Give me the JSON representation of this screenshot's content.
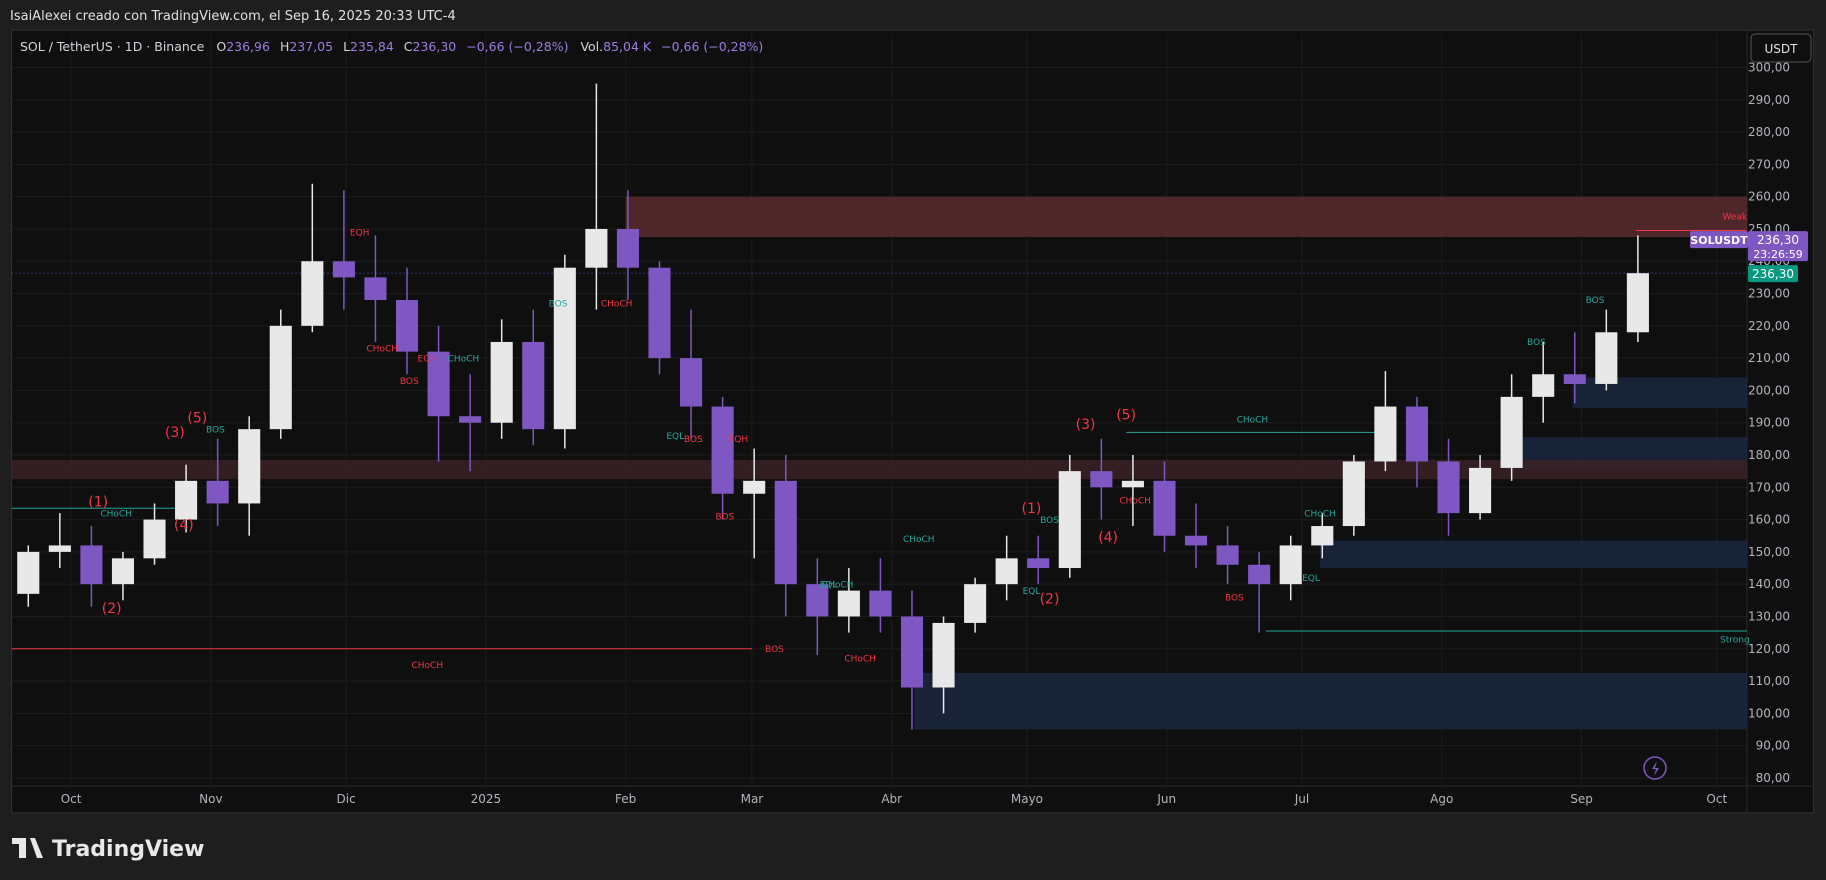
{
  "chart_data": {
    "type": "candlestick",
    "header": "IsaiAlexei creado con TradingView.com, el Sep 16, 2025 20:33 UTC-4",
    "legend": {
      "symbol": "SOL / TetherUS · 1D · Binance",
      "o_label": "O",
      "o": "236,96",
      "h_label": "H",
      "h": "237,05",
      "l_label": "L",
      "l": "235,84",
      "c_label": "C",
      "c": "236,30",
      "change": "−0,66 (−0,28%)",
      "vol_label": "Vol.",
      "vol": "85,04 K",
      "vol_change": "−0,66 (−0,28%)"
    },
    "currency": "USDT",
    "brand": "TradingView",
    "symbol_tag": "SOLUSDT",
    "countdown": "23:26:59",
    "last_price": {
      "value": 236.3,
      "label": "236,30"
    },
    "up_color": "#e8e8e8",
    "down_color": "#7e57c2",
    "x": [
      -13,
      -6,
      1,
      8,
      15,
      22,
      29,
      36,
      43,
      50,
      57,
      64,
      71,
      78,
      85,
      92,
      99,
      106,
      113,
      120,
      127,
      134,
      141,
      148,
      155,
      162,
      169,
      176,
      183,
      190,
      197,
      204,
      211,
      218,
      225,
      232,
      239,
      246,
      253,
      260,
      267,
      274,
      281,
      288,
      295,
      302,
      309,
      316,
      323,
      330,
      337,
      344
    ],
    "open": [
      137,
      150,
      152,
      140,
      148,
      160,
      172,
      165,
      188,
      220,
      240,
      235,
      228,
      212,
      192,
      190,
      215,
      188,
      238,
      250,
      238,
      210,
      195,
      168,
      172,
      140,
      130,
      138,
      130,
      108,
      128,
      140,
      148,
      145,
      175,
      170,
      172,
      155,
      152,
      146,
      140,
      152,
      158,
      178,
      195,
      178,
      162,
      176,
      198,
      205,
      202,
      218
    ],
    "high": [
      152,
      162,
      158,
      150,
      165,
      177,
      185,
      192,
      225,
      264,
      262,
      248,
      238,
      220,
      205,
      222,
      225,
      242,
      295,
      262,
      240,
      225,
      198,
      182,
      180,
      148,
      145,
      148,
      138,
      130,
      142,
      155,
      155,
      180,
      185,
      180,
      178,
      165,
      158,
      150,
      155,
      162,
      180,
      206,
      198,
      185,
      180,
      205,
      215,
      218,
      225,
      248
    ],
    "low": [
      133,
      145,
      133,
      135,
      146,
      156,
      158,
      155,
      185,
      218,
      225,
      215,
      205,
      178,
      175,
      185,
      183,
      182,
      225,
      228,
      205,
      185,
      160,
      148,
      130,
      118,
      125,
      125,
      95,
      100,
      125,
      135,
      140,
      142,
      160,
      158,
      150,
      145,
      140,
      125,
      135,
      148,
      155,
      175,
      170,
      155,
      160,
      172,
      190,
      196,
      200,
      215
    ],
    "close": [
      150,
      152,
      140,
      148,
      160,
      172,
      165,
      188,
      220,
      240,
      235,
      228,
      212,
      192,
      190,
      215,
      188,
      238,
      250,
      238,
      210,
      195,
      168,
      172,
      140,
      130,
      138,
      130,
      108,
      128,
      140,
      148,
      145,
      175,
      170,
      172,
      155,
      152,
      146,
      140,
      152,
      158,
      178,
      195,
      178,
      162,
      176,
      198,
      205,
      202,
      218,
      236.3
    ],
    "xlim": [
      -13.2,
      371.7
    ],
    "xticks": [
      {
        "value": 0,
        "label": "Oct"
      },
      {
        "value": 31,
        "label": "Nov"
      },
      {
        "value": 61,
        "label": "Dic"
      },
      {
        "value": 92,
        "label": "2025"
      },
      {
        "value": 123,
        "label": "Feb"
      },
      {
        "value": 151,
        "label": "Mar"
      },
      {
        "value": 182,
        "label": "Abr"
      },
      {
        "value": 212,
        "label": "Mayo"
      },
      {
        "value": 243,
        "label": "Jun"
      },
      {
        "value": 273,
        "label": "Jul"
      },
      {
        "value": 304,
        "label": "Ago"
      },
      {
        "value": 335,
        "label": "Sep"
      },
      {
        "value": 365,
        "label": "Oct"
      }
    ],
    "ylim": [
      77.5,
      310.8
    ],
    "yticks": [
      {
        "value": 80,
        "label": "80,00"
      },
      {
        "value": 90,
        "label": "90,00"
      },
      {
        "value": 100,
        "label": "100,00"
      },
      {
        "value": 110,
        "label": "110,00"
      },
      {
        "value": 120,
        "label": "120,00"
      },
      {
        "value": 130,
        "label": "130,00"
      },
      {
        "value": 140,
        "label": "140,00"
      },
      {
        "value": 150,
        "label": "150,00"
      },
      {
        "value": 160,
        "label": "160,00"
      },
      {
        "value": 170,
        "label": "170,00"
      },
      {
        "value": 180,
        "label": "180,00"
      },
      {
        "value": 190,
        "label": "190,00"
      },
      {
        "value": 200,
        "label": "200,00"
      },
      {
        "value": 210,
        "label": "210,00"
      },
      {
        "value": 220,
        "label": "220,00"
      },
      {
        "value": 230,
        "label": "230,00"
      },
      {
        "value": 240,
        "label": "240,00"
      },
      {
        "value": 250,
        "label": "250,00"
      },
      {
        "value": 260,
        "label": "260,00"
      },
      {
        "value": 270,
        "label": "270,00"
      },
      {
        "value": 280,
        "label": "280,00"
      },
      {
        "value": 290,
        "label": "290,00"
      },
      {
        "value": 300,
        "label": "300,00"
      }
    ],
    "grid": true,
    "zones": [
      {
        "x0": 123,
        "x1": 371.7,
        "y0": 247.5,
        "y1": 260,
        "color": "#5a2a2e"
      },
      {
        "x0": 187,
        "x1": 371.7,
        "y0": 95,
        "y1": 112.5,
        "color": "#1a2740"
      },
      {
        "x0": 318,
        "x1": 371.7,
        "y0": 175.5,
        "y1": 185.5,
        "color": "#1a2740"
      },
      {
        "x0": 333,
        "x1": 371.7,
        "y0": 194.5,
        "y1": 204,
        "color": "#1a2740"
      },
      {
        "x0": 277,
        "x1": 371.7,
        "y0": 145,
        "y1": 153.5,
        "color": "#1a2740"
      },
      {
        "x0": -13.2,
        "x1": 371.7,
        "y0": 172.5,
        "y1": 178.5,
        "color": "#3a2226"
      }
    ],
    "levels": [
      {
        "x0": -13.2,
        "x1": 151,
        "y": 120,
        "color": "#f23645"
      },
      {
        "x0": -13.2,
        "x1": 23,
        "y": 163.5,
        "color": "#26a69a"
      },
      {
        "x0": 265,
        "x1": 371.7,
        "y": 125.5,
        "color": "#26a69a"
      },
      {
        "x0": 234,
        "x1": 290,
        "y": 187,
        "color": "#26a69a"
      },
      {
        "x0": 347,
        "x1": 371.7,
        "y": 249.5,
        "color": "#f23645"
      }
    ],
    "annotations": [
      {
        "text": "(1)",
        "x": 6,
        "y": 164,
        "color": "#f23645"
      },
      {
        "text": "(2)",
        "x": 9,
        "y": 131,
        "color": "#f23645"
      },
      {
        "text": "(3)",
        "x": 23,
        "y": 185.5,
        "color": "#f23645"
      },
      {
        "text": "(4)",
        "x": 25,
        "y": 157,
        "color": "#f23645"
      },
      {
        "text": "(5)",
        "x": 28,
        "y": 190,
        "color": "#f23645"
      },
      {
        "text": "CHoCH",
        "x": 10,
        "y": 161,
        "color": "#26a69a"
      },
      {
        "text": "BOS",
        "x": 32,
        "y": 187,
        "color": "#26a69a"
      },
      {
        "text": "EQH",
        "x": 64,
        "y": 248,
        "color": "#f23645"
      },
      {
        "text": "CHoCH",
        "x": 69,
        "y": 212,
        "color": "#f23645"
      },
      {
        "text": "BOS",
        "x": 75,
        "y": 202,
        "color": "#f23645"
      },
      {
        "text": "EQH",
        "x": 79,
        "y": 209,
        "color": "#f23645"
      },
      {
        "text": "CHoCH",
        "x": 87,
        "y": 209,
        "color": "#26a69a"
      },
      {
        "text": "BOS",
        "x": 108,
        "y": 226,
        "color": "#26a69a"
      },
      {
        "text": "CHoCH",
        "x": 121,
        "y": 226,
        "color": "#f23645"
      },
      {
        "text": "CHoCH",
        "x": 79,
        "y": 114,
        "color": "#f23645"
      },
      {
        "text": "EQL",
        "x": 134,
        "y": 185,
        "color": "#26a69a"
      },
      {
        "text": "BOS",
        "x": 138,
        "y": 184,
        "color": "#f23645"
      },
      {
        "text": "EQH",
        "x": 148,
        "y": 184,
        "color": "#f23645"
      },
      {
        "text": "BOS",
        "x": 145,
        "y": 160,
        "color": "#f23645"
      },
      {
        "text": "BOS",
        "x": 156,
        "y": 119,
        "color": "#f23645"
      },
      {
        "text": "EQL",
        "x": 168,
        "y": 139,
        "color": "#26a69a"
      },
      {
        "text": "CHoCH",
        "x": 170,
        "y": 139,
        "color": "#26a69a"
      },
      {
        "text": "CHoCH",
        "x": 175,
        "y": 116,
        "color": "#f23645"
      },
      {
        "text": "CHoCH",
        "x": 188,
        "y": 153,
        "color": "#26a69a"
      },
      {
        "text": "CHoCH",
        "x": 262,
        "y": 190,
        "color": "#26a69a"
      },
      {
        "text": "(1)",
        "x": 213,
        "y": 162,
        "color": "#f23645"
      },
      {
        "text": "(2)",
        "x": 217,
        "y": 134,
        "color": "#f23645"
      },
      {
        "text": "(3)",
        "x": 225,
        "y": 188,
        "color": "#f23645"
      },
      {
        "text": "(4)",
        "x": 230,
        "y": 153,
        "color": "#f23645"
      },
      {
        "text": "(5)",
        "x": 234,
        "y": 191,
        "color": "#f23645"
      },
      {
        "text": "BOS",
        "x": 217,
        "y": 159,
        "color": "#26a69a"
      },
      {
        "text": "EQL",
        "x": 213,
        "y": 137,
        "color": "#26a69a"
      },
      {
        "text": "CHoCH",
        "x": 236,
        "y": 165,
        "color": "#f23645"
      },
      {
        "text": "BOS",
        "x": 258,
        "y": 135,
        "color": "#f23645"
      },
      {
        "text": "EQL",
        "x": 275,
        "y": 141,
        "color": "#26a69a"
      },
      {
        "text": "CHoCH",
        "x": 277,
        "y": 161,
        "color": "#26a69a"
      },
      {
        "text": "BOS",
        "x": 325,
        "y": 214,
        "color": "#26a69a"
      },
      {
        "text": "BOS",
        "x": 338,
        "y": 227,
        "color": "#26a69a"
      },
      {
        "text": "Weak",
        "x": 369,
        "y": 253,
        "color": "#f23645"
      },
      {
        "text": "Strong",
        "x": 369,
        "y": 122,
        "color": "#26a69a"
      }
    ]
  }
}
